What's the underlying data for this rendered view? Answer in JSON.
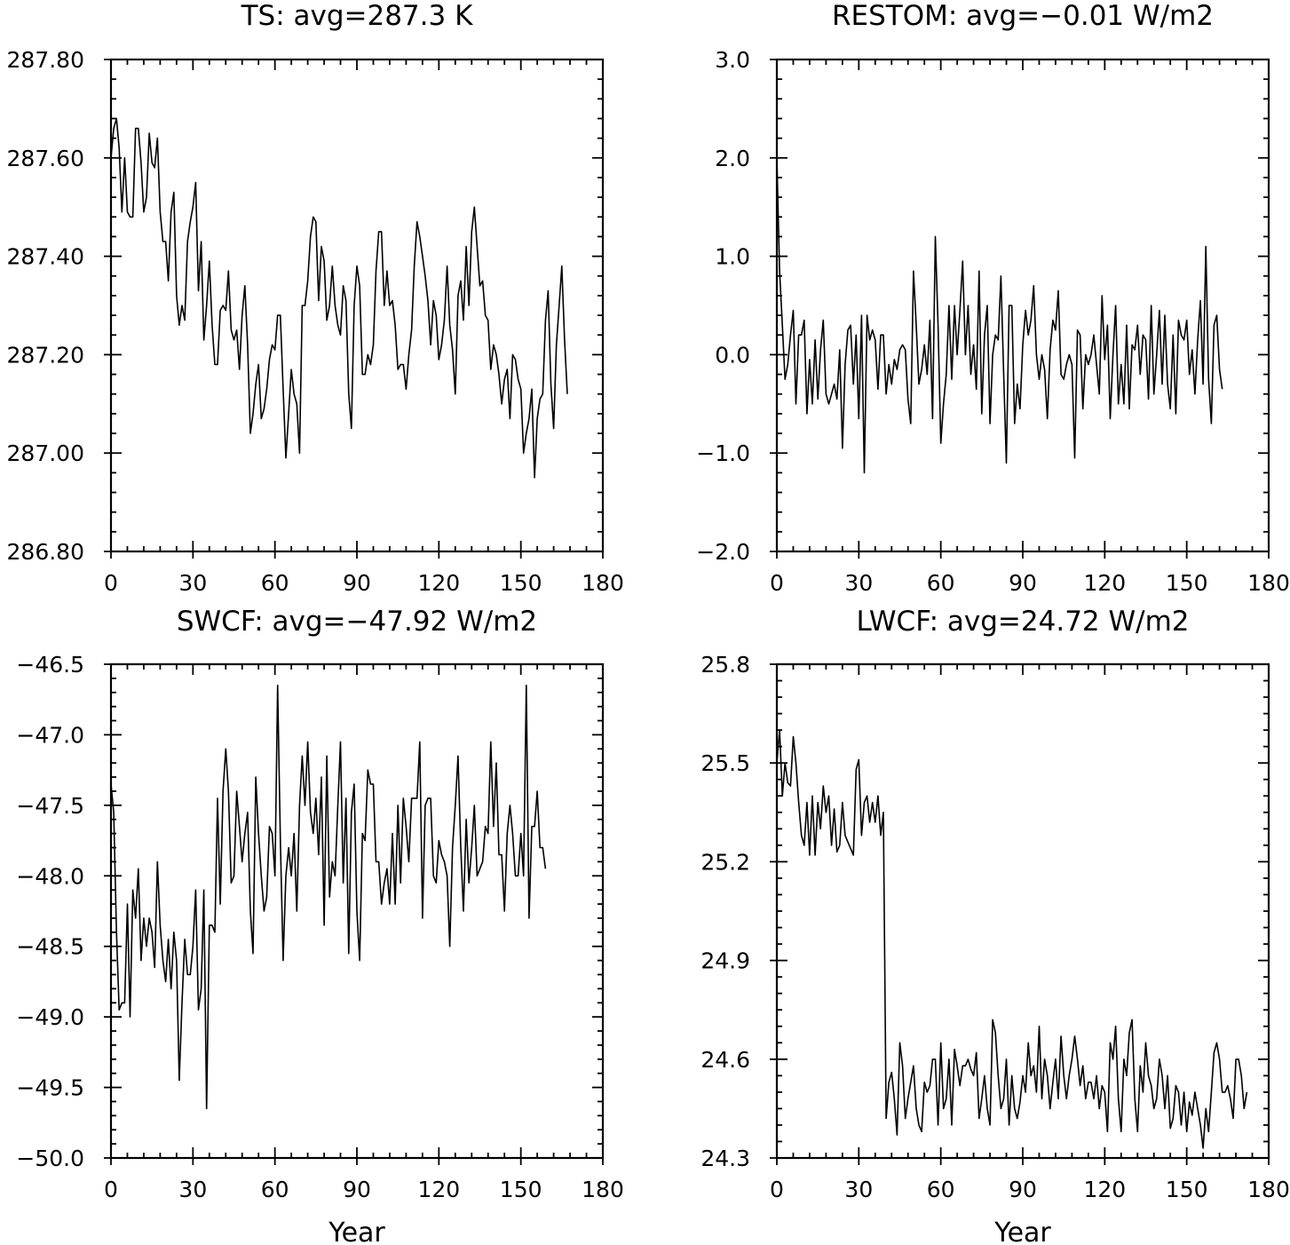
{
  "chart_data": [
    {
      "type": "line",
      "title": "TS: avg=287.3 K",
      "xlabel": "",
      "ylabel": "",
      "xlim": [
        0,
        180
      ],
      "ylim": [
        286.8,
        287.8
      ],
      "xticks": [
        0,
        30,
        60,
        90,
        120,
        150,
        180
      ],
      "xtick_labels": [
        "0",
        "30",
        "60",
        "90",
        "120",
        "150",
        "180"
      ],
      "yticks": [
        286.8,
        287.0,
        287.2,
        287.4,
        287.6,
        287.8
      ],
      "ytick_labels": [
        "286.80",
        "287.00",
        "287.20",
        "287.40",
        "287.60",
        "287.80"
      ],
      "grid": false,
      "series": [
        {
          "values": [
            287.6,
            287.66,
            287.68,
            287.62,
            287.49,
            287.6,
            287.49,
            287.48,
            287.48,
            287.66,
            287.66,
            287.59,
            287.49,
            287.52,
            287.65,
            287.59,
            287.58,
            287.64,
            287.49,
            287.43,
            287.43,
            287.35,
            287.49,
            287.53,
            287.32,
            287.26,
            287.3,
            287.27,
            287.43,
            287.47,
            287.5,
            287.55,
            287.33,
            287.43,
            287.23,
            287.3,
            287.39,
            287.26,
            287.18,
            287.18,
            287.29,
            287.3,
            287.29,
            287.37,
            287.25,
            287.23,
            287.25,
            287.17,
            287.28,
            287.34,
            287.22,
            287.04,
            287.08,
            287.14,
            287.18,
            287.07,
            287.09,
            287.13,
            287.19,
            287.22,
            287.21,
            287.28,
            287.28,
            287.13,
            286.99,
            287.08,
            287.17,
            287.12,
            287.1,
            287.0,
            287.3,
            287.3,
            287.35,
            287.44,
            287.48,
            287.47,
            287.31,
            287.42,
            287.39,
            287.27,
            287.3,
            287.38,
            287.3,
            287.26,
            287.24,
            287.34,
            287.31,
            287.12,
            287.05,
            287.3,
            287.38,
            287.34,
            287.16,
            287.16,
            287.2,
            287.18,
            287.22,
            287.37,
            287.45,
            287.45,
            287.3,
            287.37,
            287.3,
            287.31,
            287.26,
            287.17,
            287.18,
            287.18,
            287.13,
            287.2,
            287.25,
            287.38,
            287.47,
            287.44,
            287.4,
            287.36,
            287.31,
            287.22,
            287.31,
            287.28,
            287.19,
            287.22,
            287.27,
            287.38,
            287.26,
            287.21,
            287.12,
            287.32,
            287.35,
            287.27,
            287.42,
            287.3,
            287.45,
            287.5,
            287.42,
            287.34,
            287.35,
            287.28,
            287.27,
            287.17,
            287.22,
            287.2,
            287.16,
            287.1,
            287.15,
            287.17,
            287.07,
            287.2,
            287.19,
            287.15,
            287.13,
            287.0,
            287.04,
            287.07,
            287.13,
            286.95,
            287.07,
            287.11,
            287.12,
            287.27,
            287.33,
            287.14,
            287.05,
            287.22,
            287.3,
            287.38,
            287.23,
            287.12
          ]
        }
      ]
    },
    {
      "type": "line",
      "title": "RESTOM: avg=−0.01 W/m2",
      "xlabel": "",
      "ylabel": "",
      "xlim": [
        0,
        180
      ],
      "ylim": [
        -2.0,
        3.0
      ],
      "xticks": [
        0,
        30,
        60,
        90,
        120,
        150,
        180
      ],
      "xtick_labels": [
        "0",
        "30",
        "60",
        "90",
        "120",
        "150",
        "180"
      ],
      "yticks": [
        -2.0,
        -1.0,
        0.0,
        1.0,
        2.0,
        3.0
      ],
      "ytick_labels": [
        "−2.0",
        "−1.0",
        "0.0",
        "1.0",
        "2.0",
        "3.0"
      ],
      "grid": false,
      "series": [
        {
          "values": [
            2.0,
            0.85,
            0.3,
            -0.25,
            -0.1,
            0.2,
            0.45,
            -0.5,
            0.2,
            0.2,
            0.35,
            -0.6,
            -0.05,
            -0.5,
            0.15,
            -0.45,
            0.05,
            0.35,
            -0.4,
            -0.5,
            -0.4,
            -0.3,
            -0.45,
            0.05,
            -0.95,
            -0.1,
            0.25,
            0.3,
            -0.3,
            0.2,
            -0.65,
            0.4,
            -1.2,
            0.4,
            0.15,
            0.25,
            0.15,
            -0.35,
            0.2,
            0.2,
            -0.4,
            -0.1,
            -0.3,
            -0.05,
            -0.15,
            0.05,
            0.1,
            0.05,
            -0.45,
            -0.7,
            0.85,
            0.3,
            -0.3,
            -0.15,
            0.1,
            -0.2,
            0.35,
            -0.65,
            1.2,
            0.3,
            -0.9,
            -0.5,
            -0.2,
            0.5,
            -0.25,
            0.5,
            0.0,
            0.45,
            0.95,
            0.0,
            0.5,
            -0.2,
            0.1,
            -0.35,
            0.85,
            -0.6,
            0.2,
            0.5,
            -0.7,
            0.0,
            0.2,
            0.15,
            0.8,
            -0.2,
            -1.1,
            0.5,
            0.5,
            -0.7,
            -0.3,
            -0.55,
            0.1,
            0.45,
            0.2,
            0.35,
            0.7,
            0.0,
            -0.25,
            0.0,
            -0.15,
            -0.65,
            0.05,
            0.35,
            0.25,
            0.65,
            -0.2,
            -0.25,
            -0.1,
            0.0,
            -0.1,
            -1.05,
            0.25,
            0.2,
            -0.55,
            0.0,
            -0.1,
            0.0,
            0.2,
            -0.1,
            -0.4,
            0.6,
            -0.05,
            0.3,
            -0.65,
            0.0,
            0.5,
            -0.5,
            -0.1,
            -0.5,
            0.3,
            -0.55,
            0.1,
            0.05,
            0.3,
            -0.2,
            0.2,
            0.15,
            -0.45,
            0.5,
            -0.4,
            0.0,
            0.45,
            -0.3,
            0.4,
            -0.3,
            -0.55,
            0.2,
            -0.6,
            0.35,
            0.2,
            0.15,
            0.35,
            -0.2,
            0.05,
            -0.4,
            0.15,
            0.55,
            -0.3,
            1.1,
            -0.25,
            -0.7,
            0.3,
            0.4,
            -0.15,
            -0.35
          ]
        }
      ]
    },
    {
      "type": "line",
      "title": "SWCF: avg=−47.92 W/m2",
      "xlabel": "Year",
      "ylabel": "",
      "xlim": [
        0,
        180
      ],
      "ylim": [
        -50.0,
        -46.5
      ],
      "xticks": [
        0,
        30,
        60,
        90,
        120,
        150,
        180
      ],
      "xtick_labels": [
        "0",
        "30",
        "60",
        "90",
        "120",
        "150",
        "180"
      ],
      "yticks": [
        -50.0,
        -49.5,
        -49.0,
        -48.5,
        -48.0,
        -47.5,
        -47.0,
        -46.5
      ],
      "ytick_labels": [
        "−50.0",
        "−49.5",
        "−49.0",
        "−48.5",
        "−48.0",
        "−47.5",
        "−47.0",
        "−46.5"
      ],
      "grid": false,
      "series": [
        {
          "values": [
            -47.35,
            -47.55,
            -48.4,
            -48.95,
            -48.9,
            -48.9,
            -48.2,
            -49.0,
            -48.1,
            -48.3,
            -47.95,
            -48.6,
            -48.3,
            -48.5,
            -48.3,
            -48.4,
            -48.65,
            -47.9,
            -48.35,
            -48.6,
            -48.75,
            -48.45,
            -48.8,
            -48.4,
            -48.6,
            -49.45,
            -48.9,
            -48.45,
            -48.7,
            -48.7,
            -48.5,
            -48.1,
            -48.95,
            -48.8,
            -48.1,
            -49.65,
            -48.35,
            -48.35,
            -48.4,
            -47.45,
            -48.2,
            -47.4,
            -47.1,
            -47.4,
            -48.05,
            -48.0,
            -47.4,
            -47.65,
            -47.9,
            -47.7,
            -47.55,
            -48.25,
            -48.55,
            -47.3,
            -47.7,
            -48.0,
            -48.25,
            -48.15,
            -47.65,
            -47.7,
            -48.0,
            -46.65,
            -47.75,
            -48.6,
            -48.0,
            -47.8,
            -48.0,
            -47.7,
            -48.25,
            -47.5,
            -47.15,
            -47.5,
            -47.05,
            -47.55,
            -47.7,
            -47.45,
            -47.85,
            -47.3,
            -48.35,
            -47.15,
            -48.15,
            -47.9,
            -48.0,
            -47.5,
            -47.05,
            -48.05,
            -47.45,
            -48.55,
            -47.55,
            -47.35,
            -48.25,
            -48.6,
            -47.7,
            -47.75,
            -47.25,
            -47.35,
            -47.35,
            -47.9,
            -47.9,
            -48.2,
            -48.05,
            -47.95,
            -48.2,
            -47.7,
            -48.2,
            -47.5,
            -48.05,
            -47.45,
            -47.65,
            -47.9,
            -47.45,
            -47.45,
            -47.45,
            -47.05,
            -48.3,
            -47.5,
            -47.45,
            -47.45,
            -48.0,
            -48.05,
            -47.75,
            -47.85,
            -47.9,
            -48.0,
            -48.5,
            -47.8,
            -47.5,
            -47.15,
            -47.8,
            -48.25,
            -47.6,
            -48.05,
            -47.8,
            -47.5,
            -48.0,
            -47.95,
            -47.9,
            -47.65,
            -47.7,
            -47.05,
            -47.65,
            -47.2,
            -47.85,
            -47.85,
            -48.25,
            -47.7,
            -47.5,
            -47.7,
            -48.0,
            -48.0,
            -47.7,
            -48.0,
            -46.65,
            -48.3,
            -47.65,
            -47.65,
            -47.4,
            -47.8,
            -47.8,
            -47.95
          ]
        }
      ]
    },
    {
      "type": "line",
      "title": "LWCF: avg=24.72 W/m2",
      "xlabel": "Year",
      "ylabel": "",
      "xlim": [
        0,
        180
      ],
      "ylim": [
        24.3,
        25.8
      ],
      "xticks": [
        0,
        30,
        60,
        90,
        120,
        150,
        180
      ],
      "xtick_labels": [
        "0",
        "30",
        "60",
        "90",
        "120",
        "150",
        "180"
      ],
      "yticks": [
        24.3,
        24.6,
        24.9,
        25.2,
        25.5,
        25.8
      ],
      "ytick_labels": [
        "24.3",
        "24.6",
        "24.9",
        "25.2",
        "25.5",
        "25.8"
      ],
      "grid": false,
      "series": [
        {
          "values": [
            25.5,
            25.6,
            25.4,
            25.5,
            25.44,
            25.43,
            25.58,
            25.5,
            25.38,
            25.28,
            25.25,
            25.38,
            25.22,
            25.4,
            25.22,
            25.38,
            25.3,
            25.43,
            25.35,
            25.4,
            25.25,
            25.36,
            25.23,
            25.25,
            25.38,
            25.28,
            25.26,
            25.24,
            25.22,
            25.48,
            25.51,
            25.28,
            25.38,
            25.4,
            25.32,
            25.38,
            25.32,
            25.4,
            25.28,
            25.35,
            24.42,
            24.53,
            24.56,
            24.48,
            24.37,
            24.65,
            24.58,
            24.42,
            24.48,
            24.53,
            24.58,
            24.45,
            24.4,
            24.38,
            24.53,
            24.5,
            24.52,
            24.6,
            24.6,
            24.4,
            24.65,
            24.45,
            24.48,
            24.6,
            24.4,
            24.63,
            24.58,
            24.52,
            24.58,
            24.58,
            24.6,
            24.57,
            24.55,
            24.62,
            24.42,
            24.48,
            24.55,
            24.45,
            24.4,
            24.72,
            24.68,
            24.55,
            24.45,
            24.48,
            24.6,
            24.4,
            24.55,
            24.45,
            24.42,
            24.47,
            24.55,
            24.5,
            24.65,
            24.55,
            24.58,
            24.5,
            24.7,
            24.48,
            24.6,
            24.55,
            24.45,
            24.53,
            24.6,
            24.48,
            24.67,
            24.55,
            24.48,
            24.55,
            24.6,
            24.67,
            24.6,
            24.52,
            24.58,
            24.48,
            24.53,
            24.53,
            24.48,
            24.55,
            24.45,
            24.52,
            24.5,
            24.38,
            24.65,
            24.6,
            24.7,
            24.48,
            24.38,
            24.6,
            24.55,
            24.68,
            24.72,
            24.48,
            24.38,
            24.58,
            24.5,
            24.65,
            24.55,
            24.52,
            24.45,
            24.48,
            24.6,
            24.55,
            24.45,
            24.55,
            24.39,
            24.42,
            24.52,
            24.5,
            24.4,
            24.5,
            24.38,
            24.47,
            24.43,
            24.5,
            24.45,
            24.4,
            24.33,
            24.45,
            24.38,
            24.5,
            24.62,
            24.65,
            24.6,
            24.5,
            24.5,
            24.52,
            24.48,
            24.42,
            24.6,
            24.6,
            24.55,
            24.45,
            24.5
          ]
        }
      ]
    }
  ]
}
